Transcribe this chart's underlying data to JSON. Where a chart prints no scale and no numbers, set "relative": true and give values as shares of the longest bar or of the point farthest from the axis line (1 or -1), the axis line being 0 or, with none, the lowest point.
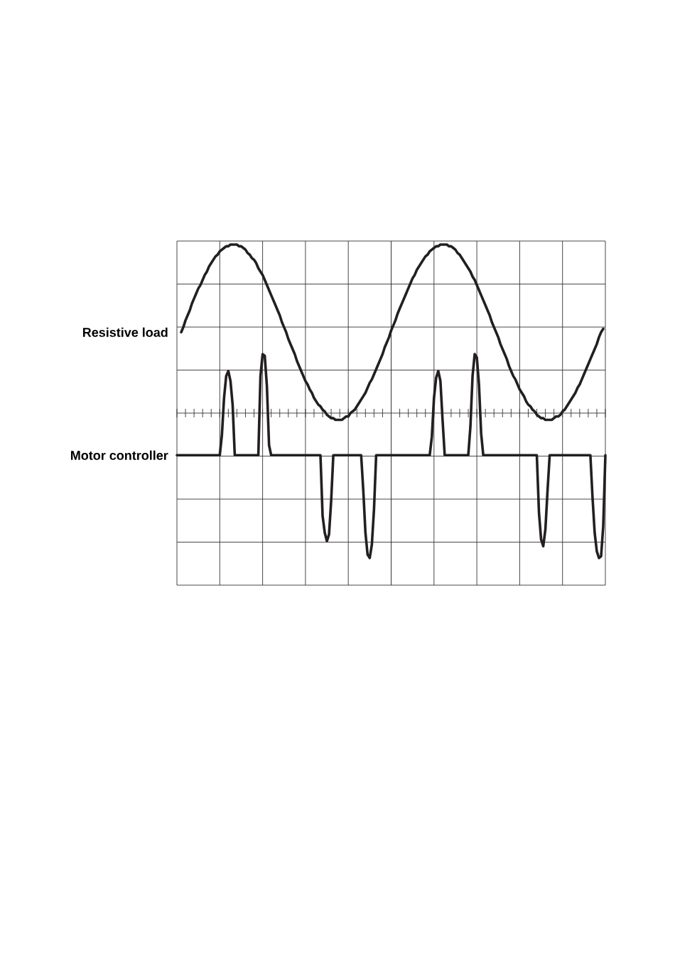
{
  "chart_data": {
    "type": "line",
    "relative": true,
    "grid": true,
    "categories": [
      null,
      null,
      null,
      null,
      null,
      null,
      null,
      null,
      null,
      null,
      null,
      null,
      null,
      null,
      null,
      null,
      null,
      null,
      null,
      null,
      null,
      null,
      null,
      null,
      null,
      null,
      null,
      null,
      null,
      null,
      null,
      null,
      null,
      null,
      null,
      null,
      null,
      null,
      null,
      null,
      null,
      null,
      null,
      null,
      null,
      null,
      null,
      null,
      null,
      null,
      null,
      null,
      null,
      null,
      null,
      null,
      null,
      null,
      null,
      null,
      null,
      null,
      null,
      null,
      null,
      null,
      null,
      null,
      null,
      null,
      null,
      null,
      null,
      null,
      null,
      null,
      null,
      null,
      null,
      null,
      null,
      null,
      null,
      null,
      null,
      null,
      null,
      null,
      null,
      null,
      null,
      null,
      null,
      null,
      null,
      null,
      null,
      null,
      null,
      null,
      null,
      null,
      null,
      null,
      null,
      null,
      null,
      null,
      null,
      null,
      null,
      null,
      null,
      null,
      null,
      null,
      null,
      null,
      null,
      null,
      null,
      null,
      null,
      null,
      null,
      null,
      null,
      null,
      null,
      null,
      null,
      null,
      null,
      null,
      null,
      null,
      null,
      null,
      null,
      null,
      null,
      null,
      null,
      null,
      null,
      null,
      null,
      null,
      null,
      null,
      null,
      null,
      null,
      null,
      null,
      null,
      null,
      null,
      null,
      null,
      null,
      null,
      null,
      null,
      null,
      null,
      null,
      null,
      null,
      null,
      null,
      null,
      null,
      null,
      null,
      null,
      null,
      null,
      null,
      null,
      null,
      null,
      null,
      null,
      null,
      null,
      null,
      null,
      null,
      null,
      null,
      null,
      null,
      null,
      null,
      null,
      null,
      null,
      null,
      null,
      null
    ],
    "series": [
      {
        "name": "Resistive load",
        "color": "#231f20",
        "values": [
          null,
          null,
          0.48,
          0.51,
          0.55,
          0.58,
          0.61,
          0.65,
          0.68,
          0.71,
          0.74,
          0.76,
          0.79,
          0.82,
          0.84,
          0.87,
          0.89,
          0.91,
          0.93,
          0.94,
          0.96,
          0.97,
          0.98,
          0.99,
          0.99,
          1.0,
          1.0,
          1.0,
          1.0,
          0.99,
          0.99,
          0.98,
          0.97,
          0.95,
          0.94,
          0.92,
          0.91,
          0.89,
          0.86,
          0.84,
          0.82,
          0.79,
          0.76,
          0.73,
          0.7,
          0.67,
          0.64,
          0.61,
          0.58,
          0.54,
          0.51,
          0.48,
          0.44,
          0.41,
          0.38,
          0.35,
          0.31,
          0.28,
          0.25,
          0.22,
          0.19,
          0.17,
          0.14,
          0.12,
          0.09,
          0.07,
          0.05,
          0.04,
          0.02,
          0.01,
          -0.01,
          -0.02,
          -0.03,
          -0.03,
          -0.04,
          -0.04,
          -0.04,
          -0.04,
          -0.03,
          -0.02,
          -0.02,
          0.0,
          0.01,
          0.02,
          0.04,
          0.06,
          0.08,
          0.1,
          0.12,
          0.15,
          0.18,
          0.2,
          0.23,
          0.26,
          0.29,
          0.32,
          0.35,
          0.39,
          0.42,
          0.45,
          0.49,
          0.52,
          0.55,
          0.59,
          0.62,
          0.65,
          0.68,
          0.71,
          0.74,
          0.77,
          0.8,
          0.82,
          0.85,
          0.87,
          0.89,
          0.91,
          0.93,
          0.94,
          0.96,
          0.97,
          0.98,
          0.99,
          0.99,
          1.0,
          1.0,
          1.0,
          1.0,
          0.99,
          0.99,
          0.98,
          0.97,
          0.95,
          0.94,
          0.92,
          0.9,
          0.88,
          0.86,
          0.84,
          0.81,
          0.79,
          0.76,
          0.73,
          0.7,
          0.67,
          0.64,
          0.61,
          0.58,
          0.54,
          0.51,
          0.48,
          0.45,
          0.41,
          0.38,
          0.35,
          0.32,
          0.28,
          0.25,
          0.22,
          0.2,
          0.17,
          0.14,
          0.12,
          0.1,
          0.07,
          0.05,
          0.04,
          0.02,
          0.01,
          -0.01,
          -0.02,
          -0.03,
          -0.03,
          -0.04,
          -0.04,
          -0.04,
          -0.04,
          -0.03,
          -0.02,
          -0.02,
          -0.01,
          0.01,
          0.02,
          0.04,
          0.06,
          0.08,
          0.1,
          0.12,
          0.15,
          0.17,
          0.2,
          0.23,
          0.26,
          0.29,
          0.32,
          0.35,
          0.38,
          0.41,
          0.45,
          0.48,
          0.5,
          null
        ]
      },
      {
        "name": "Motor controller",
        "color": "#231f20",
        "values": [
          -0.25,
          -0.25,
          -0.25,
          -0.25,
          -0.25,
          -0.25,
          -0.25,
          -0.25,
          -0.25,
          -0.25,
          -0.25,
          -0.25,
          -0.25,
          -0.25,
          -0.25,
          -0.25,
          -0.25,
          -0.25,
          -0.25,
          -0.25,
          -0.25,
          -0.13,
          0.09,
          0.22,
          0.25,
          0.19,
          0.05,
          -0.25,
          -0.25,
          -0.25,
          -0.25,
          -0.25,
          -0.25,
          -0.25,
          -0.25,
          -0.25,
          -0.25,
          -0.25,
          -0.25,
          0.22,
          0.35,
          0.34,
          0.16,
          -0.19,
          -0.25,
          -0.25,
          -0.25,
          -0.25,
          -0.25,
          -0.25,
          -0.25,
          -0.25,
          -0.25,
          -0.25,
          -0.25,
          -0.25,
          -0.25,
          -0.25,
          -0.25,
          -0.25,
          -0.25,
          -0.25,
          -0.25,
          -0.25,
          -0.25,
          -0.25,
          -0.25,
          -0.25,
          -0.61,
          -0.71,
          -0.76,
          -0.72,
          -0.52,
          -0.25,
          -0.25,
          -0.25,
          -0.25,
          -0.25,
          -0.25,
          -0.25,
          -0.25,
          -0.25,
          -0.25,
          -0.25,
          -0.25,
          -0.25,
          -0.25,
          -0.46,
          -0.71,
          -0.84,
          -0.86,
          -0.78,
          -0.57,
          -0.25,
          -0.25,
          -0.25,
          -0.25,
          -0.25,
          -0.25,
          -0.25,
          -0.25,
          -0.25,
          -0.25,
          -0.25,
          -0.25,
          -0.25,
          -0.25,
          -0.25,
          -0.25,
          -0.25,
          -0.25,
          -0.25,
          -0.25,
          -0.25,
          -0.25,
          -0.25,
          -0.25,
          -0.25,
          -0.25,
          -0.14,
          0.09,
          0.21,
          0.25,
          0.19,
          -0.04,
          -0.25,
          -0.25,
          -0.25,
          -0.25,
          -0.25,
          -0.25,
          -0.25,
          -0.25,
          -0.25,
          -0.25,
          -0.25,
          -0.25,
          -0.08,
          0.22,
          0.35,
          0.33,
          0.17,
          -0.12,
          -0.25,
          -0.25,
          -0.25,
          -0.25,
          -0.25,
          -0.25,
          -0.25,
          -0.25,
          -0.25,
          -0.25,
          -0.25,
          -0.25,
          -0.25,
          -0.25,
          -0.25,
          -0.25,
          -0.25,
          -0.25,
          -0.25,
          -0.25,
          -0.25,
          -0.25,
          -0.25,
          -0.25,
          -0.25,
          -0.25,
          -0.59,
          -0.75,
          -0.79,
          -0.69,
          -0.46,
          -0.25,
          -0.25,
          -0.25,
          -0.25,
          -0.25,
          -0.25,
          -0.25,
          -0.25,
          -0.25,
          -0.25,
          -0.25,
          -0.25,
          -0.25,
          -0.25,
          -0.25,
          -0.25,
          -0.25,
          -0.25,
          -0.25,
          -0.25,
          -0.5,
          -0.71,
          -0.82,
          -0.86,
          -0.85,
          -0.67,
          -0.25
        ]
      }
    ]
  }
}
